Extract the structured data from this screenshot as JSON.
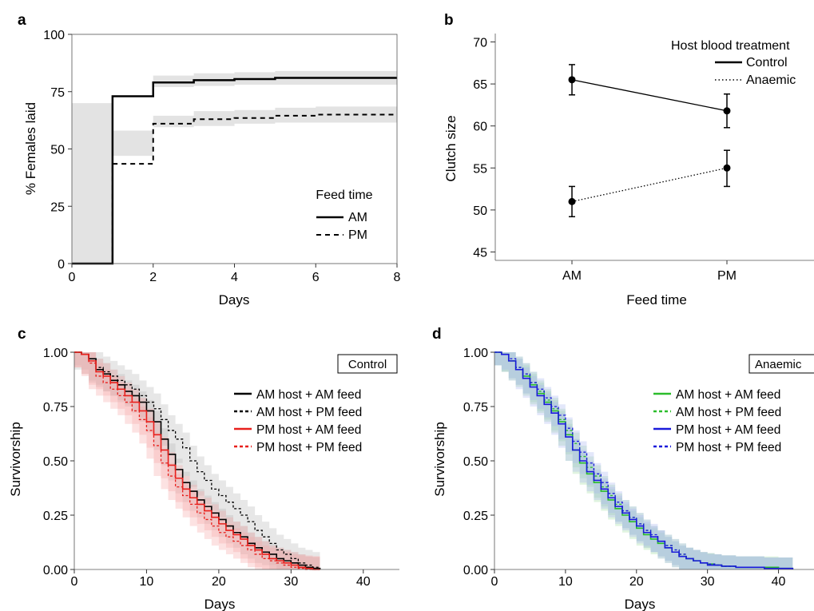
{
  "chart_data": [
    {
      "panel": "a",
      "type": "line",
      "xlabel": "Days",
      "ylabel": "% Females laid",
      "xlim": [
        0,
        8
      ],
      "ylim": [
        0,
        100
      ],
      "xticks": [
        0,
        2,
        4,
        6,
        8
      ],
      "yticks": [
        0,
        25,
        50,
        75,
        100
      ],
      "legend_title": "Feed time",
      "series": [
        {
          "name": "AM",
          "style": "solid",
          "x": [
            0,
            1,
            2,
            3,
            4,
            5,
            6,
            7,
            8
          ],
          "y": [
            0,
            73,
            79,
            80,
            80.5,
            81,
            81,
            81,
            81
          ],
          "lower": [
            0,
            70,
            76,
            77,
            77.5,
            78,
            78,
            78,
            78
          ],
          "upper": [
            0,
            76,
            82,
            83,
            83.5,
            84,
            84,
            84,
            84
          ]
        },
        {
          "name": "PM",
          "style": "dashed",
          "x": [
            0,
            1,
            2,
            3,
            4,
            5,
            6,
            7,
            8
          ],
          "y": [
            0,
            43.5,
            61,
            63,
            63.5,
            64.5,
            65,
            65,
            65
          ],
          "lower": [
            0,
            40,
            58,
            59.5,
            60,
            61,
            61.5,
            61.5,
            61.5
          ],
          "upper": [
            0,
            47,
            64.5,
            66.5,
            67,
            68,
            68.5,
            68.5,
            68.5
          ]
        }
      ]
    },
    {
      "panel": "b",
      "type": "line",
      "xlabel": "Feed time",
      "ylabel": "Clutch size",
      "categories": [
        "AM",
        "PM"
      ],
      "ylim": [
        44,
        71
      ],
      "yticks": [
        45,
        50,
        55,
        60,
        65,
        70
      ],
      "legend_title": "Host blood treatment",
      "series": [
        {
          "name": "Control",
          "style": "solid",
          "values": [
            65.5,
            61.8
          ],
          "err_low": [
            63.7,
            59.8
          ],
          "err_high": [
            67.3,
            63.8
          ]
        },
        {
          "name": "Anaemic",
          "style": "dotted",
          "values": [
            51,
            55
          ],
          "err_low": [
            49.2,
            52.8
          ],
          "err_high": [
            52.8,
            57.1
          ]
        }
      ]
    },
    {
      "panel": "c",
      "type": "line",
      "box_label": "Control",
      "xlabel": "Days",
      "ylabel": "Survivorship",
      "xlim": [
        0,
        45
      ],
      "ylim": [
        0,
        1
      ],
      "xticks": [
        0,
        10,
        20,
        30,
        40
      ],
      "yticks": [
        "0.00",
        "0.25",
        "0.50",
        "0.75",
        "1.00"
      ],
      "series": [
        {
          "name": "AM host + AM feed",
          "color": "#000000",
          "style": "solid",
          "x": [
            0,
            1,
            2,
            3,
            4,
            5,
            6,
            7,
            8,
            9,
            10,
            11,
            12,
            13,
            14,
            15,
            16,
            17,
            18,
            19,
            20,
            21,
            22,
            23,
            24,
            25,
            26,
            27,
            28,
            29,
            30,
            31,
            32,
            33,
            34
          ],
          "y": [
            1,
            0.99,
            0.97,
            0.92,
            0.9,
            0.87,
            0.85,
            0.82,
            0.8,
            0.77,
            0.73,
            0.68,
            0.6,
            0.53,
            0.46,
            0.4,
            0.36,
            0.32,
            0.29,
            0.26,
            0.23,
            0.2,
            0.17,
            0.15,
            0.12,
            0.1,
            0.08,
            0.07,
            0.05,
            0.04,
            0.03,
            0.02,
            0.01,
            0.005,
            0
          ],
          "band": 0.05,
          "band_color": "#b4b4b4"
        },
        {
          "name": "AM host + PM feed",
          "color": "#000000",
          "style": "dashed",
          "x": [
            0,
            1,
            2,
            3,
            4,
            5,
            6,
            7,
            8,
            9,
            10,
            11,
            12,
            13,
            14,
            15,
            16,
            17,
            18,
            19,
            20,
            21,
            22,
            23,
            24,
            25,
            26,
            27,
            28,
            29,
            30,
            31,
            32,
            33,
            34
          ],
          "y": [
            1,
            0.99,
            0.97,
            0.93,
            0.91,
            0.89,
            0.87,
            0.85,
            0.83,
            0.8,
            0.77,
            0.74,
            0.69,
            0.64,
            0.6,
            0.56,
            0.5,
            0.45,
            0.41,
            0.37,
            0.34,
            0.31,
            0.28,
            0.25,
            0.22,
            0.18,
            0.15,
            0.12,
            0.09,
            0.07,
            0.05,
            0.03,
            0.02,
            0.01,
            0
          ],
          "band": 0.07,
          "band_color": "#b4b4b4"
        },
        {
          "name": "PM host + AM feed",
          "color": "#e8201c",
          "style": "solid",
          "x": [
            0,
            1,
            2,
            3,
            4,
            5,
            6,
            7,
            8,
            9,
            10,
            11,
            12,
            13,
            14,
            15,
            16,
            17,
            18,
            19,
            20,
            21,
            22,
            23,
            24,
            25,
            26,
            27,
            28,
            29,
            30,
            31,
            32,
            33,
            34
          ],
          "y": [
            1,
            0.99,
            0.96,
            0.91,
            0.89,
            0.86,
            0.83,
            0.8,
            0.77,
            0.73,
            0.68,
            0.62,
            0.55,
            0.48,
            0.42,
            0.37,
            0.33,
            0.3,
            0.27,
            0.24,
            0.21,
            0.18,
            0.16,
            0.14,
            0.11,
            0.09,
            0.07,
            0.05,
            0.04,
            0.03,
            0.02,
            0.01,
            0.005,
            0,
            0
          ],
          "band": 0.06,
          "band_color": "#f6a5a5"
        },
        {
          "name": "PM host + PM feed",
          "color": "#e8201c",
          "style": "dashed",
          "x": [
            0,
            1,
            2,
            3,
            4,
            5,
            6,
            7,
            8,
            9,
            10,
            11,
            12,
            13,
            14,
            15,
            16,
            17,
            18,
            19,
            20,
            21,
            22,
            23,
            24,
            25,
            26,
            27,
            28,
            29,
            30,
            31,
            32,
            33,
            34
          ],
          "y": [
            1,
            0.99,
            0.95,
            0.89,
            0.86,
            0.83,
            0.8,
            0.77,
            0.73,
            0.69,
            0.64,
            0.57,
            0.49,
            0.43,
            0.38,
            0.34,
            0.3,
            0.26,
            0.23,
            0.2,
            0.17,
            0.15,
            0.13,
            0.11,
            0.09,
            0.07,
            0.05,
            0.04,
            0.03,
            0.02,
            0.01,
            0.005,
            0,
            0,
            0
          ],
          "band": 0.06,
          "band_color": "#f6a5a5"
        }
      ]
    },
    {
      "panel": "d",
      "type": "line",
      "box_label": "Anaemic",
      "xlabel": "Days",
      "ylabel": "Survivorship",
      "xlim": [
        0,
        45
      ],
      "ylim": [
        0,
        1
      ],
      "xticks": [
        0,
        10,
        20,
        30,
        40
      ],
      "yticks": [
        "0.00",
        "0.25",
        "0.50",
        "0.75",
        "1.00"
      ],
      "series": [
        {
          "name": "AM host + AM feed",
          "color": "#2bbd2b",
          "style": "solid",
          "x": [
            0,
            1,
            2,
            3,
            4,
            5,
            6,
            7,
            8,
            9,
            10,
            11,
            12,
            13,
            14,
            15,
            16,
            17,
            18,
            19,
            20,
            21,
            22,
            23,
            24,
            25,
            26,
            27,
            28,
            29,
            30,
            31,
            32,
            34,
            36,
            38,
            40,
            42
          ],
          "y": [
            1,
            0.99,
            0.96,
            0.92,
            0.89,
            0.85,
            0.81,
            0.77,
            0.73,
            0.68,
            0.62,
            0.55,
            0.49,
            0.44,
            0.4,
            0.36,
            0.32,
            0.28,
            0.25,
            0.22,
            0.19,
            0.16,
            0.14,
            0.12,
            0.1,
            0.08,
            0.06,
            0.05,
            0.04,
            0.03,
            0.025,
            0.02,
            0.015,
            0.01,
            0.01,
            0.01,
            0.005,
            0
          ],
          "band": 0.05,
          "band_color": "#9fdc9f"
        },
        {
          "name": "AM host + PM feed",
          "color": "#2bbd2b",
          "style": "dashed",
          "x": [
            0,
            1,
            2,
            3,
            4,
            5,
            6,
            7,
            8,
            9,
            10,
            11,
            12,
            13,
            14,
            15,
            16,
            17,
            18,
            19,
            20,
            21,
            22,
            23,
            24,
            25,
            26,
            27,
            28,
            29,
            30,
            31,
            32,
            34,
            36,
            38,
            40,
            42
          ],
          "y": [
            1,
            0.99,
            0.96,
            0.93,
            0.9,
            0.86,
            0.82,
            0.78,
            0.74,
            0.69,
            0.64,
            0.58,
            0.52,
            0.47,
            0.43,
            0.38,
            0.34,
            0.3,
            0.27,
            0.24,
            0.21,
            0.18,
            0.15,
            0.13,
            0.11,
            0.09,
            0.07,
            0.05,
            0.04,
            0.03,
            0.025,
            0.02,
            0.015,
            0.01,
            0.01,
            0.005,
            0.005,
            0
          ],
          "band": 0.05,
          "band_color": "#9fdc9f"
        },
        {
          "name": "PM host + AM feed",
          "color": "#1a1adb",
          "style": "solid",
          "x": [
            0,
            1,
            2,
            3,
            4,
            5,
            6,
            7,
            8,
            9,
            10,
            11,
            12,
            13,
            14,
            15,
            16,
            17,
            18,
            19,
            20,
            21,
            22,
            23,
            24,
            25,
            26,
            27,
            28,
            29,
            30,
            31,
            32,
            34,
            36,
            38,
            40,
            42
          ],
          "y": [
            1,
            0.99,
            0.96,
            0.92,
            0.88,
            0.84,
            0.8,
            0.76,
            0.72,
            0.67,
            0.61,
            0.55,
            0.5,
            0.45,
            0.41,
            0.37,
            0.33,
            0.29,
            0.26,
            0.23,
            0.2,
            0.17,
            0.15,
            0.13,
            0.1,
            0.08,
            0.06,
            0.05,
            0.04,
            0.03,
            0.02,
            0.02,
            0.015,
            0.01,
            0.01,
            0.005,
            0.005,
            0
          ],
          "band": 0.05,
          "band_color": "#a8b4ef"
        },
        {
          "name": "PM host + PM feed",
          "color": "#1a1adb",
          "style": "dashed",
          "x": [
            0,
            1,
            2,
            3,
            4,
            5,
            6,
            7,
            8,
            9,
            10,
            11,
            12,
            13,
            14,
            15,
            16,
            17,
            18,
            19,
            20,
            21,
            22,
            23,
            24,
            25,
            26,
            27,
            28,
            29,
            30,
            31,
            32,
            34,
            36,
            38,
            40,
            42
          ],
          "y": [
            1,
            0.99,
            0.97,
            0.93,
            0.9,
            0.86,
            0.83,
            0.79,
            0.75,
            0.71,
            0.65,
            0.59,
            0.54,
            0.49,
            0.44,
            0.4,
            0.35,
            0.31,
            0.27,
            0.24,
            0.21,
            0.18,
            0.16,
            0.13,
            0.11,
            0.09,
            0.07,
            0.05,
            0.04,
            0.03,
            0.025,
            0.02,
            0.015,
            0.01,
            0.01,
            0.005,
            0.005,
            0
          ],
          "band": 0.05,
          "band_color": "#a8b4ef"
        }
      ]
    }
  ]
}
